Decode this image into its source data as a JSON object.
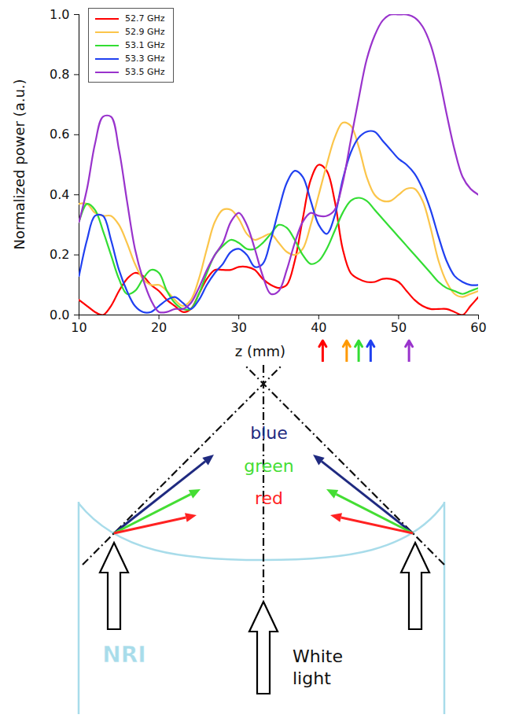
{
  "chart_data": {
    "type": "line",
    "x_label": "z (mm)",
    "y_label": "Normalized power (a.u.)",
    "x": [
      10,
      11,
      12,
      13,
      14,
      15,
      16,
      17,
      18,
      19,
      20,
      21,
      22,
      23,
      24,
      25,
      26,
      27,
      28,
      29,
      30,
      31,
      32,
      33,
      34,
      35,
      36,
      37,
      38,
      39,
      40,
      41,
      42,
      43,
      44,
      45,
      46,
      47,
      48,
      49,
      50,
      51,
      52,
      53,
      54,
      55,
      56,
      57,
      58,
      59,
      60
    ],
    "series": [
      {
        "name": "52.7 GHz",
        "color": "#ff0000",
        "values": [
          0.05,
          0.03,
          0.01,
          0.0,
          0.03,
          0.08,
          0.12,
          0.14,
          0.13,
          0.1,
          0.08,
          0.05,
          0.03,
          0.01,
          0.02,
          0.07,
          0.12,
          0.15,
          0.15,
          0.15,
          0.16,
          0.16,
          0.15,
          0.12,
          0.1,
          0.09,
          0.1,
          0.18,
          0.32,
          0.45,
          0.5,
          0.48,
          0.38,
          0.22,
          0.14,
          0.12,
          0.11,
          0.11,
          0.12,
          0.12,
          0.11,
          0.08,
          0.05,
          0.03,
          0.02,
          0.02,
          0.02,
          0.01,
          0.0,
          0.03,
          0.06
        ]
      },
      {
        "name": "52.9 GHz",
        "color": "#fbc54a",
        "values": [
          0.37,
          0.37,
          0.34,
          0.33,
          0.33,
          0.3,
          0.24,
          0.17,
          0.12,
          0.1,
          0.1,
          0.08,
          0.05,
          0.03,
          0.05,
          0.12,
          0.22,
          0.31,
          0.35,
          0.35,
          0.32,
          0.27,
          0.25,
          0.26,
          0.27,
          0.24,
          0.21,
          0.2,
          0.22,
          0.3,
          0.4,
          0.5,
          0.59,
          0.64,
          0.63,
          0.56,
          0.46,
          0.4,
          0.38,
          0.38,
          0.4,
          0.42,
          0.42,
          0.38,
          0.29,
          0.18,
          0.11,
          0.07,
          0.06,
          0.07,
          0.08
        ]
      },
      {
        "name": "53.1 GHz",
        "color": "#33dd33",
        "values": [
          0.31,
          0.37,
          0.35,
          0.28,
          0.2,
          0.12,
          0.07,
          0.08,
          0.12,
          0.15,
          0.14,
          0.08,
          0.04,
          0.02,
          0.02,
          0.07,
          0.14,
          0.2,
          0.23,
          0.25,
          0.24,
          0.22,
          0.22,
          0.24,
          0.27,
          0.3,
          0.29,
          0.25,
          0.2,
          0.17,
          0.18,
          0.22,
          0.28,
          0.34,
          0.38,
          0.39,
          0.38,
          0.35,
          0.32,
          0.29,
          0.26,
          0.23,
          0.2,
          0.17,
          0.14,
          0.11,
          0.09,
          0.08,
          0.07,
          0.08,
          0.09
        ]
      },
      {
        "name": "53.3 GHz",
        "color": "#2040f0",
        "values": [
          0.13,
          0.25,
          0.33,
          0.33,
          0.25,
          0.15,
          0.08,
          0.03,
          0.01,
          0.01,
          0.03,
          0.05,
          0.06,
          0.04,
          0.02,
          0.05,
          0.1,
          0.14,
          0.17,
          0.21,
          0.22,
          0.2,
          0.16,
          0.17,
          0.25,
          0.35,
          0.44,
          0.48,
          0.46,
          0.38,
          0.3,
          0.27,
          0.33,
          0.45,
          0.54,
          0.59,
          0.61,
          0.61,
          0.58,
          0.55,
          0.52,
          0.5,
          0.47,
          0.42,
          0.35,
          0.26,
          0.18,
          0.13,
          0.11,
          0.1,
          0.1
        ]
      },
      {
        "name": "53.5 GHz",
        "color": "#9933cc",
        "values": [
          0.31,
          0.42,
          0.57,
          0.66,
          0.66,
          0.55,
          0.38,
          0.22,
          0.12,
          0.05,
          0.01,
          0.01,
          0.02,
          0.02,
          0.04,
          0.09,
          0.15,
          0.2,
          0.24,
          0.31,
          0.34,
          0.3,
          0.22,
          0.13,
          0.07,
          0.08,
          0.15,
          0.24,
          0.31,
          0.34,
          0.33,
          0.33,
          0.35,
          0.44,
          0.58,
          0.72,
          0.85,
          0.93,
          0.98,
          1.0,
          1.0,
          1.0,
          0.99,
          0.96,
          0.9,
          0.8,
          0.67,
          0.55,
          0.46,
          0.42,
          0.4
        ]
      }
    ],
    "xlim": [
      10,
      60
    ],
    "xticks": [
      10,
      20,
      30,
      40,
      50,
      60
    ],
    "ylim": [
      0,
      1
    ],
    "yticks": [
      {
        "value": 0,
        "label": "0.0"
      },
      {
        "value": 0.2,
        "label": "0.2"
      },
      {
        "value": 0.4,
        "label": "0.4"
      },
      {
        "value": 0.6,
        "label": "0.6"
      },
      {
        "value": 0.8,
        "label": "0.8"
      },
      {
        "value": 1,
        "label": "1.0"
      }
    ],
    "legend": "top-left",
    "arrows": [
      {
        "x": 40.5,
        "color": "#ff0000"
      },
      {
        "x": 43.5,
        "color": "#ff9900"
      },
      {
        "x": 45,
        "color": "#33dd33"
      },
      {
        "x": 46.5,
        "color": "#2040f0"
      },
      {
        "x": 51.3,
        "color": "#9933cc"
      }
    ]
  },
  "diagram": {
    "rays": [
      {
        "label": "blue",
        "color": "#1f2a80"
      },
      {
        "label": "green",
        "color": "#44dd33"
      },
      {
        "label": "red",
        "color": "#ff2222"
      }
    ],
    "material": "NRI",
    "source": "White light"
  }
}
